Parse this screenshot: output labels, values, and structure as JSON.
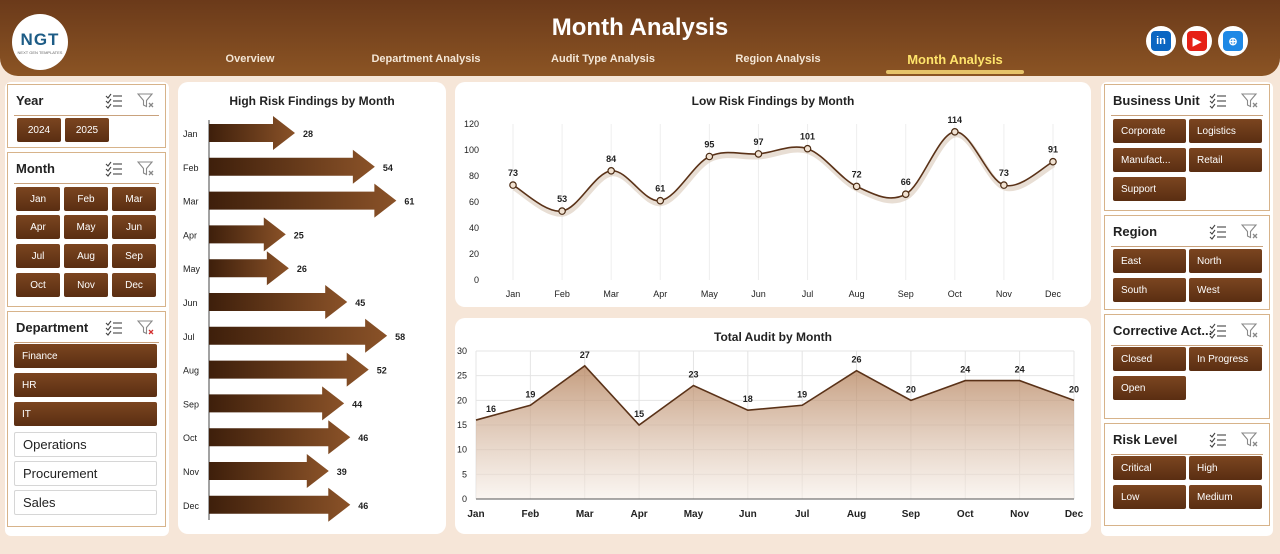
{
  "header": {
    "title": "Month Analysis",
    "logo_text": "NGT",
    "logo_subtext": "NEXT GEN TEMPLATES",
    "nav_tabs": [
      {
        "label": "Overview"
      },
      {
        "label": "Department Analysis"
      },
      {
        "label": "Audit Type Analysis"
      },
      {
        "label": "Region Analysis"
      },
      {
        "label": "Month Analysis",
        "active": true
      }
    ],
    "social": [
      {
        "name": "linkedin-icon",
        "glyph": "in",
        "color": "#0a66c2"
      },
      {
        "name": "youtube-icon",
        "glyph": "▶",
        "color": "#e62117"
      },
      {
        "name": "globe-icon",
        "glyph": "⊕",
        "color": "#1e88e5"
      }
    ]
  },
  "slicers": {
    "year": {
      "title": "Year",
      "items": [
        "2024",
        "2025"
      ]
    },
    "month": {
      "title": "Month",
      "items": [
        "Jan",
        "Feb",
        "Mar",
        "Apr",
        "May",
        "Jun",
        "Jul",
        "Aug",
        "Sep",
        "Oct",
        "Nov",
        "Dec"
      ]
    },
    "department": {
      "title": "Department",
      "selected": [
        "Finance",
        "HR",
        "IT"
      ],
      "unselected": [
        "Operations",
        "Procurement",
        "Sales"
      ]
    },
    "business_unit": {
      "title": "Business Unit",
      "items": [
        "Corporate",
        "Logistics",
        "Manufact...",
        "Retail",
        "Support"
      ]
    },
    "region": {
      "title": "Region",
      "items": [
        "East",
        "North",
        "South",
        "West"
      ]
    },
    "corrective_action": {
      "title": "Corrective Act...",
      "items": [
        "Closed",
        "In Progress",
        "Open"
      ]
    },
    "risk_level": {
      "title": "Risk Level",
      "items": [
        "Critical",
        "High",
        "Low",
        "Medium"
      ]
    }
  },
  "colors": {
    "primary": "#6b3a1a",
    "accent": "#ffe46b",
    "line": "#5a3218"
  },
  "chart_data": [
    {
      "type": "bar",
      "title": "High Risk Findings by Month",
      "categories": [
        "Jan",
        "Feb",
        "Mar",
        "Apr",
        "May",
        "Jun",
        "Jul",
        "Aug",
        "Sep",
        "Oct",
        "Nov",
        "Dec"
      ],
      "values": [
        28,
        54,
        61,
        25,
        26,
        45,
        58,
        52,
        44,
        46,
        39,
        46
      ],
      "orientation": "horizontal",
      "xlim": [
        0,
        70
      ]
    },
    {
      "type": "line",
      "title": "Low Risk Findings by Month",
      "categories": [
        "Jan",
        "Feb",
        "Mar",
        "Apr",
        "May",
        "Jun",
        "Jul",
        "Aug",
        "Sep",
        "Oct",
        "Nov",
        "Dec"
      ],
      "values": [
        73,
        53,
        84,
        61,
        95,
        97,
        101,
        72,
        66,
        114,
        73,
        91
      ],
      "ylim": [
        0,
        120
      ],
      "yticks": [
        0,
        20,
        40,
        60,
        80,
        100,
        120
      ],
      "grid": "vertical"
    },
    {
      "type": "area",
      "title": "Total Audit by Month",
      "categories": [
        "Jan",
        "Feb",
        "Mar",
        "Apr",
        "May",
        "Jun",
        "Jul",
        "Aug",
        "Sep",
        "Oct",
        "Nov",
        "Dec"
      ],
      "values": [
        16,
        19,
        27,
        15,
        23,
        18,
        19,
        26,
        20,
        24,
        24,
        20
      ],
      "ylim": [
        0,
        30
      ],
      "yticks": [
        0,
        5,
        10,
        15,
        20,
        25,
        30
      ],
      "grid": "both"
    }
  ]
}
